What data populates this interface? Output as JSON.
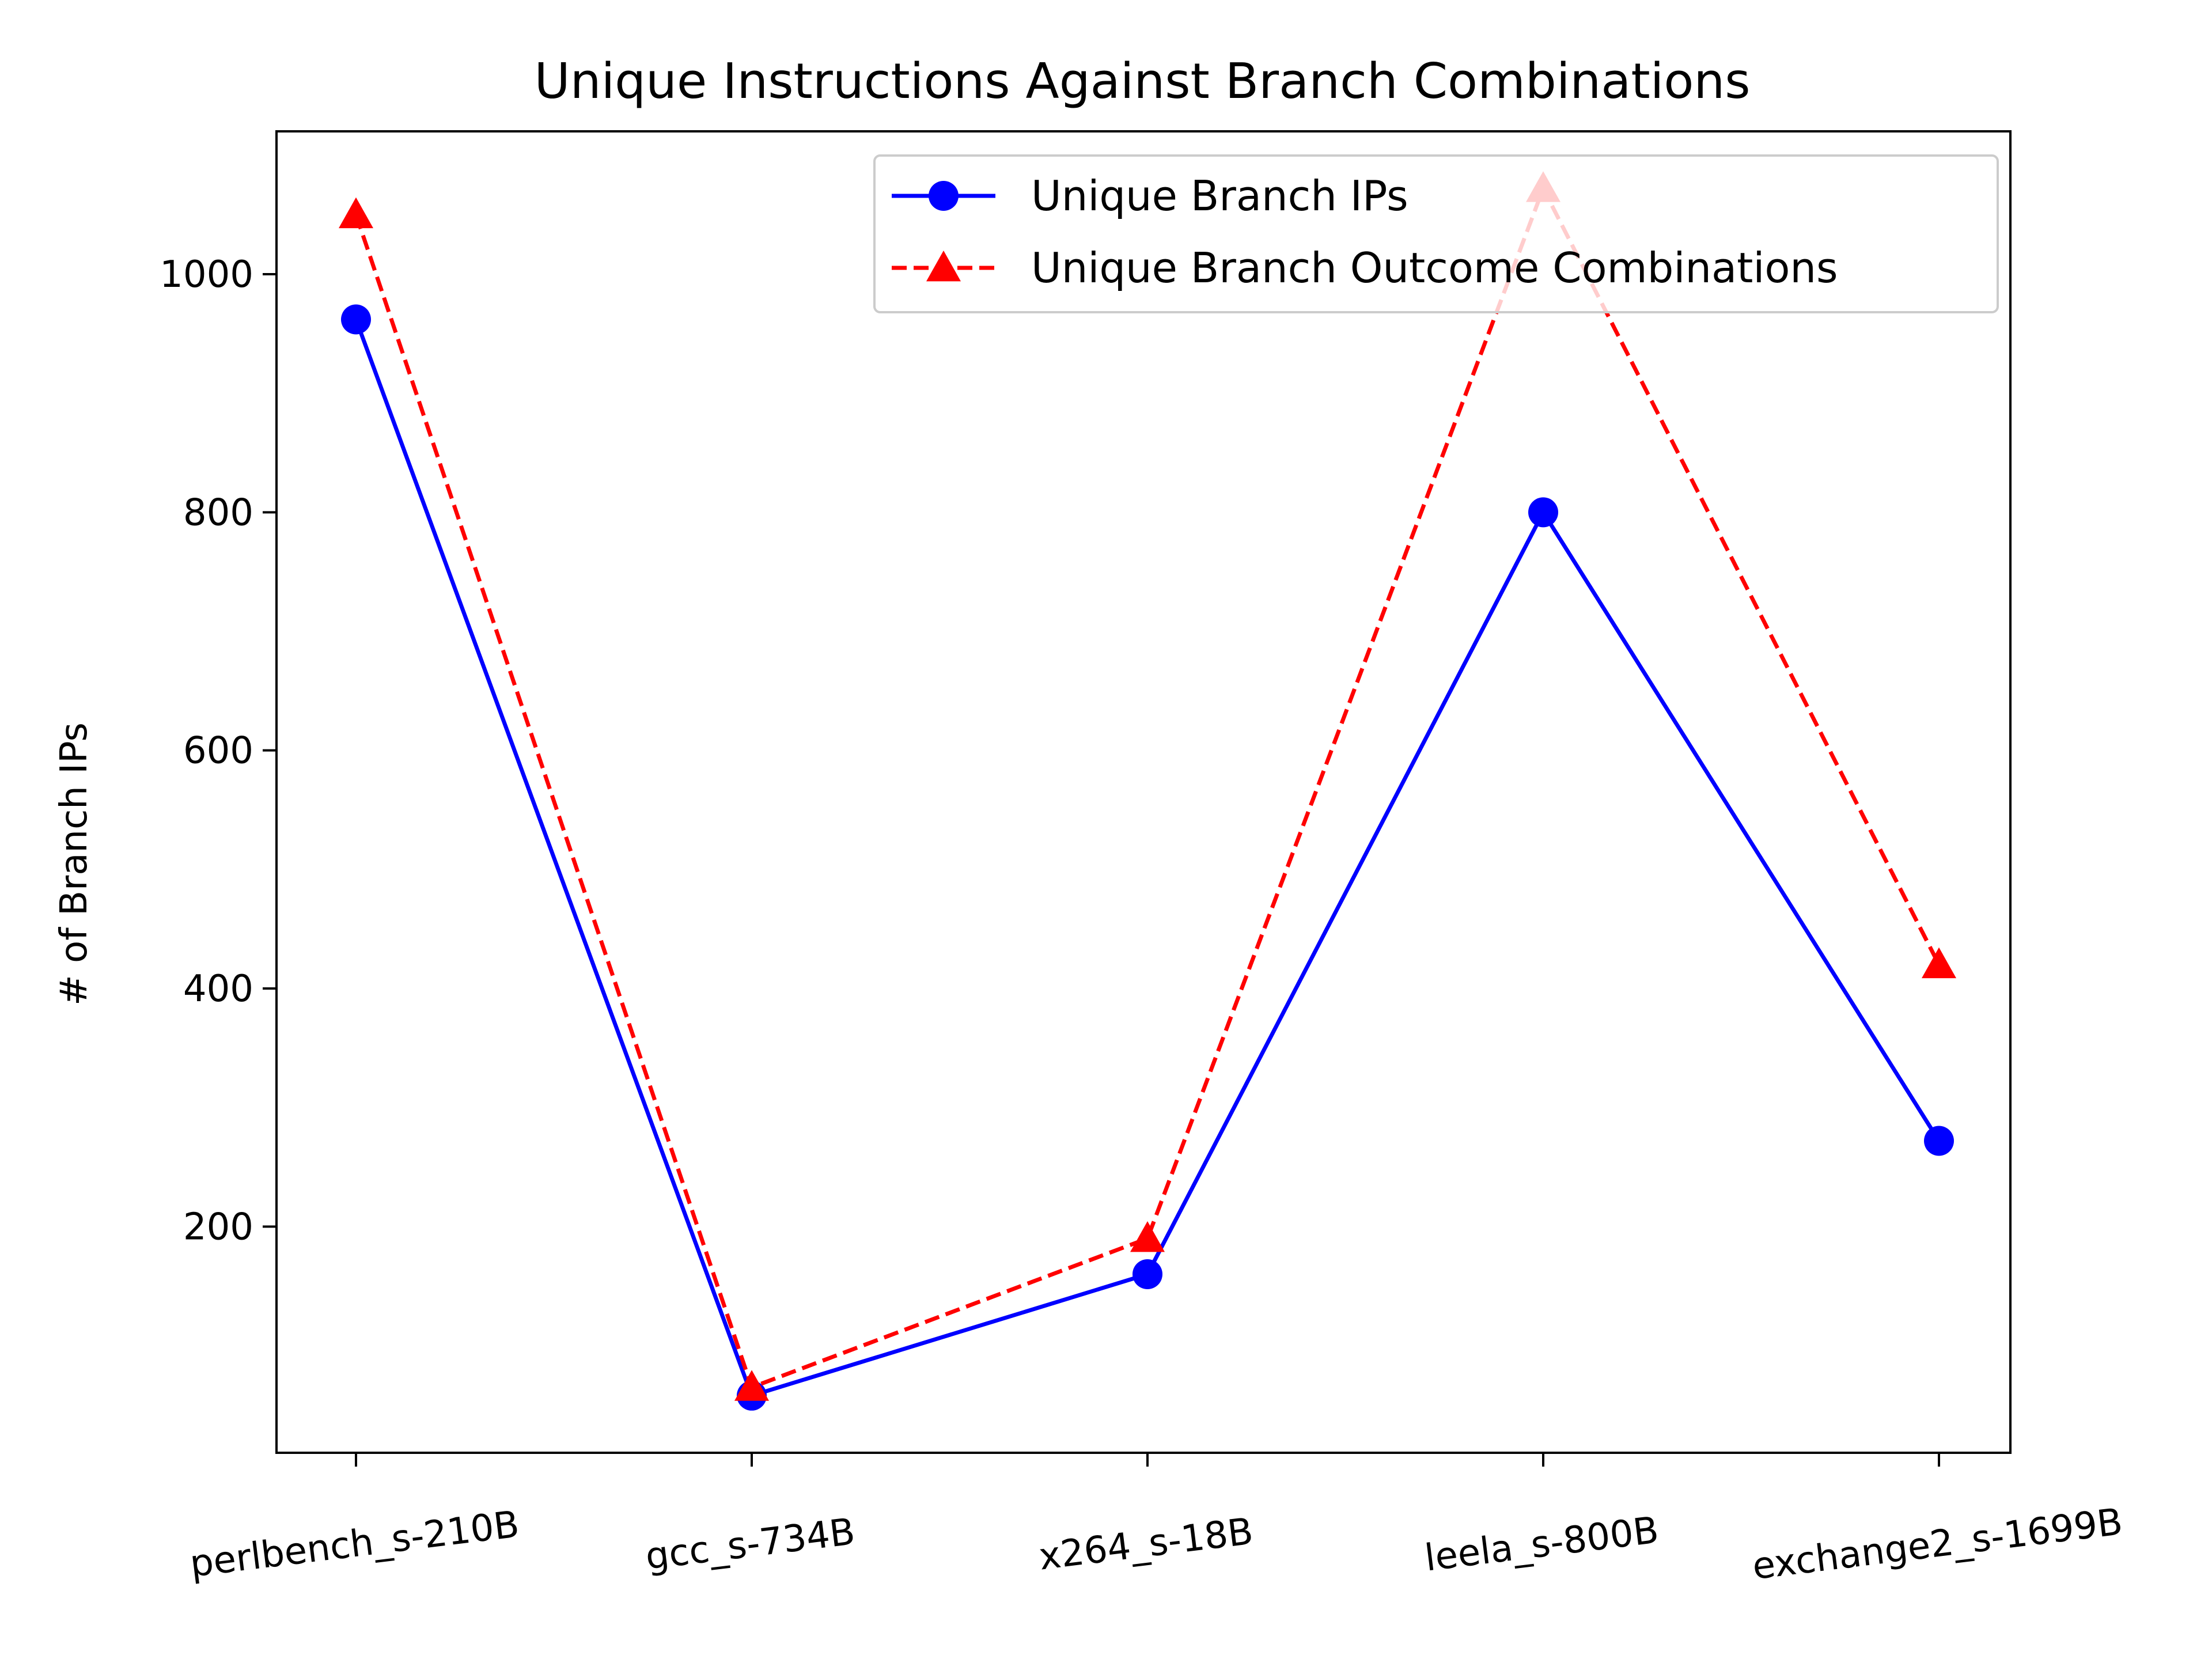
{
  "chart_data": {
    "type": "line",
    "title": "Unique Instructions Against Branch Combinations",
    "xlabel": "",
    "ylabel": "# of Branch IPs",
    "categories": [
      "perlbench_s-210B",
      "gcc_s-734B",
      "x264_s-18B",
      "leela_s-800B",
      "exchange2_s-1699B"
    ],
    "yticks": [
      200,
      400,
      600,
      800,
      1000
    ],
    "ylim": [
      10,
      1120
    ],
    "grid": false,
    "legend_position": "top-right",
    "series": [
      {
        "name": "Unique Branch IPs",
        "values": [
          962,
          58,
          160,
          800,
          272
        ],
        "color": "#0000ff",
        "marker": "circle",
        "line_style": "solid"
      },
      {
        "name": "Unique Branch Outcome Combinations",
        "values": [
          1050,
          65,
          190,
          1072,
          420
        ],
        "color": "#ff0000",
        "marker": "triangle",
        "line_style": "dashed"
      }
    ]
  }
}
